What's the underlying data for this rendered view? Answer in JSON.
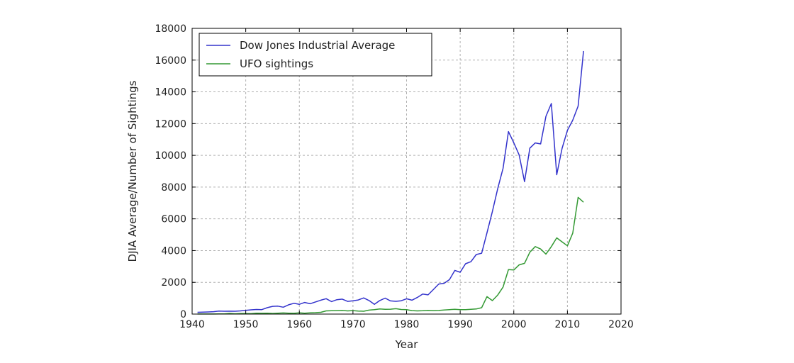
{
  "chart_data": {
    "type": "line",
    "title": "",
    "xlabel": "Year",
    "ylabel": "DJIA Average/Number of Sightings",
    "xlim": [
      1940,
      2020
    ],
    "ylim": [
      0,
      18000
    ],
    "xticks": [
      1940,
      1950,
      1960,
      1970,
      1980,
      1990,
      2000,
      2010,
      2020
    ],
    "yticks": [
      0,
      2000,
      4000,
      6000,
      8000,
      10000,
      12000,
      14000,
      16000,
      18000
    ],
    "grid": true,
    "legend_position": "top-left",
    "series": [
      {
        "name": "Dow Jones Industrial Average",
        "color": "#3333cc",
        "x": [
          1941,
          1942,
          1943,
          1944,
          1945,
          1946,
          1947,
          1948,
          1949,
          1950,
          1951,
          1952,
          1953,
          1954,
          1955,
          1956,
          1957,
          1958,
          1959,
          1960,
          1961,
          1962,
          1963,
          1964,
          1965,
          1966,
          1967,
          1968,
          1969,
          1970,
          1971,
          1972,
          1973,
          1974,
          1975,
          1976,
          1977,
          1978,
          1979,
          1980,
          1981,
          1982,
          1983,
          1984,
          1985,
          1986,
          1987,
          1988,
          1989,
          1990,
          1991,
          1992,
          1993,
          1994,
          1995,
          1996,
          1997,
          1998,
          1999,
          2000,
          2001,
          2002,
          2003,
          2004,
          2005,
          2006,
          2007,
          2008,
          2009,
          2010,
          2011,
          2012,
          2013
        ],
        "y": [
          110,
          119,
          135,
          152,
          193,
          177,
          181,
          177,
          200,
          235,
          269,
          291,
          281,
          404,
          488,
          499,
          435,
          583,
          679,
          616,
          731,
          652,
          762,
          874,
          969,
          785,
          905,
          944,
          800,
          839,
          890,
          1020,
          851,
          616,
          852,
          1004,
          831,
          805,
          838,
          964,
          875,
          1047,
          1258,
          1212,
          1547,
          1896,
          1939,
          2169,
          2753,
          2634,
          3169,
          3301,
          3754,
          3834,
          5117,
          6448,
          7908,
          9181,
          11497,
          10787,
          10022,
          8342,
          10454,
          10783,
          10718,
          12463,
          13265,
          8776,
          10428,
          11578,
          12218,
          13104,
          16577
        ]
      },
      {
        "name": "UFO sightings",
        "color": "#339933",
        "x": [
          1941,
          1942,
          1943,
          1944,
          1945,
          1946,
          1947,
          1948,
          1949,
          1950,
          1951,
          1952,
          1953,
          1954,
          1955,
          1956,
          1957,
          1958,
          1959,
          1960,
          1961,
          1962,
          1963,
          1964,
          1965,
          1966,
          1967,
          1968,
          1969,
          1970,
          1971,
          1972,
          1973,
          1974,
          1975,
          1976,
          1977,
          1978,
          1979,
          1980,
          1981,
          1982,
          1983,
          1984,
          1985,
          1986,
          1987,
          1988,
          1989,
          1990,
          1991,
          1992,
          1993,
          1994,
          1995,
          1996,
          1997,
          1998,
          1999,
          2000,
          2001,
          2002,
          2003,
          2004,
          2005,
          2006,
          2007,
          2008,
          2009,
          2010,
          2011,
          2012,
          2013
        ],
        "y": [
          5,
          5,
          6,
          6,
          10,
          12,
          40,
          20,
          30,
          35,
          25,
          60,
          50,
          60,
          40,
          60,
          70,
          60,
          50,
          80,
          60,
          80,
          90,
          110,
          200,
          210,
          220,
          230,
          200,
          220,
          190,
          180,
          250,
          280,
          320,
          300,
          310,
          340,
          290,
          280,
          220,
          200,
          210,
          230,
          220,
          230,
          260,
          280,
          300,
          280,
          280,
          300,
          320,
          400,
          1100,
          850,
          1200,
          1700,
          2800,
          2780,
          3100,
          3200,
          3900,
          4250,
          4100,
          3780,
          4250,
          4800,
          4550,
          4300,
          5100,
          7350,
          7050
        ]
      }
    ]
  }
}
